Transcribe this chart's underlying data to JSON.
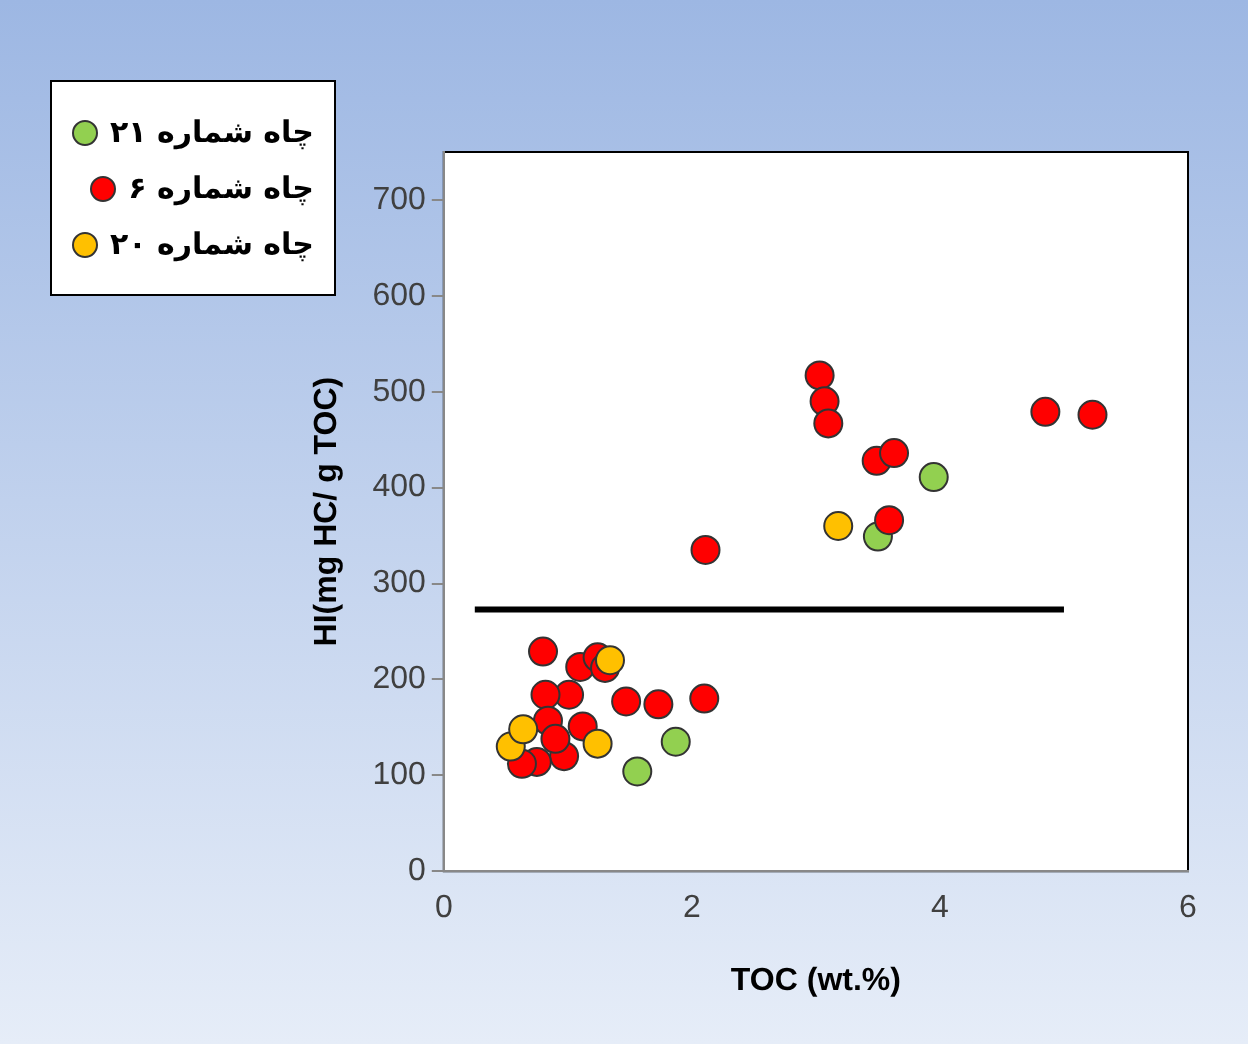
{
  "chart_data": {
    "type": "scatter",
    "xlabel": "TOC (wt.%)",
    "ylabel": "HI(mg HC/ g TOC)",
    "xlim": [
      0,
      6
    ],
    "xticks": [
      0,
      2,
      4,
      6
    ],
    "ylim": [
      0,
      750
    ],
    "yticks": [
      0,
      100,
      200,
      300,
      400,
      500,
      600,
      700
    ],
    "grid": false,
    "legend": "top left",
    "marker": "circle",
    "series": [
      {
        "name": "چاه شماره ۲۱",
        "color": "#92d050",
        "x": [
          1.56,
          1.87,
          3.5,
          3.95
        ],
        "values": [
          104,
          135,
          349,
          411
        ]
      },
      {
        "name": "چاه شماره ۶",
        "color": "#ff0000",
        "x": [
          3.03,
          3.07,
          3.1,
          4.85,
          5.23,
          3.49,
          3.63,
          3.59,
          2.11,
          2.1,
          1.73,
          1.47,
          0.8,
          1.1,
          1.24,
          1.3,
          1.01,
          0.82,
          0.84,
          1.12,
          0.97,
          0.75,
          0.63,
          0.9
        ],
        "values": [
          517,
          490,
          467,
          479,
          476,
          428,
          436,
          366,
          335,
          180,
          174,
          177,
          229,
          213,
          223,
          212,
          184,
          184,
          157,
          151,
          120,
          114,
          112,
          138
        ]
      },
      {
        "name": "چاه شماره ۲۰",
        "color": "#ffc000",
        "x": [
          3.18,
          1.34,
          1.24,
          0.54,
          0.64
        ],
        "values": [
          360,
          220,
          133,
          130,
          148
        ]
      },
      {
        "type": "line",
        "color": "#000000",
        "marker": "none",
        "x": [
          0.25,
          5
        ],
        "values": [
          273,
          273
        ]
      }
    ]
  }
}
